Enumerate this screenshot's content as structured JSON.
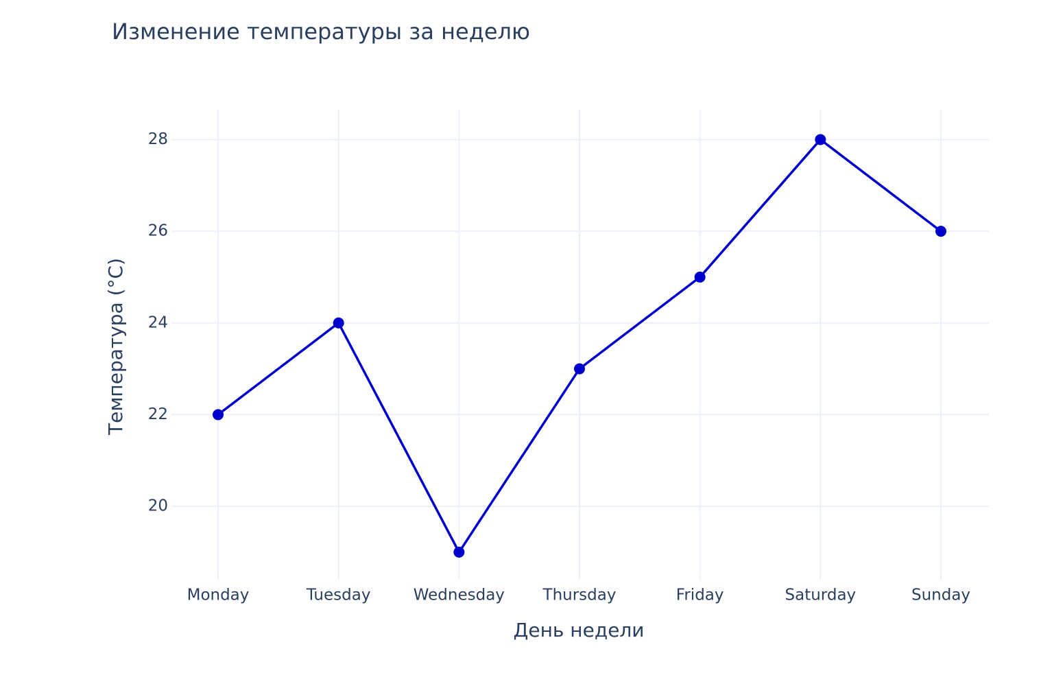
{
  "chart_data": {
    "type": "line",
    "title": "Изменение температуры за неделю",
    "x_label": "День недели",
    "y_label": "Температура (°C)",
    "categories": [
      "Monday",
      "Tuesday",
      "Wednesday",
      "Thursday",
      "Friday",
      "Saturday",
      "Sunday"
    ],
    "series": [
      {
        "name": "Температура",
        "color": "#0000cd",
        "values": [
          22,
          24,
          19,
          23,
          25,
          28,
          26
        ]
      }
    ],
    "ylim": [
      18.4,
      28.65
    ],
    "yticks": [
      20,
      22,
      24,
      26,
      28
    ],
    "grid": true
  }
}
